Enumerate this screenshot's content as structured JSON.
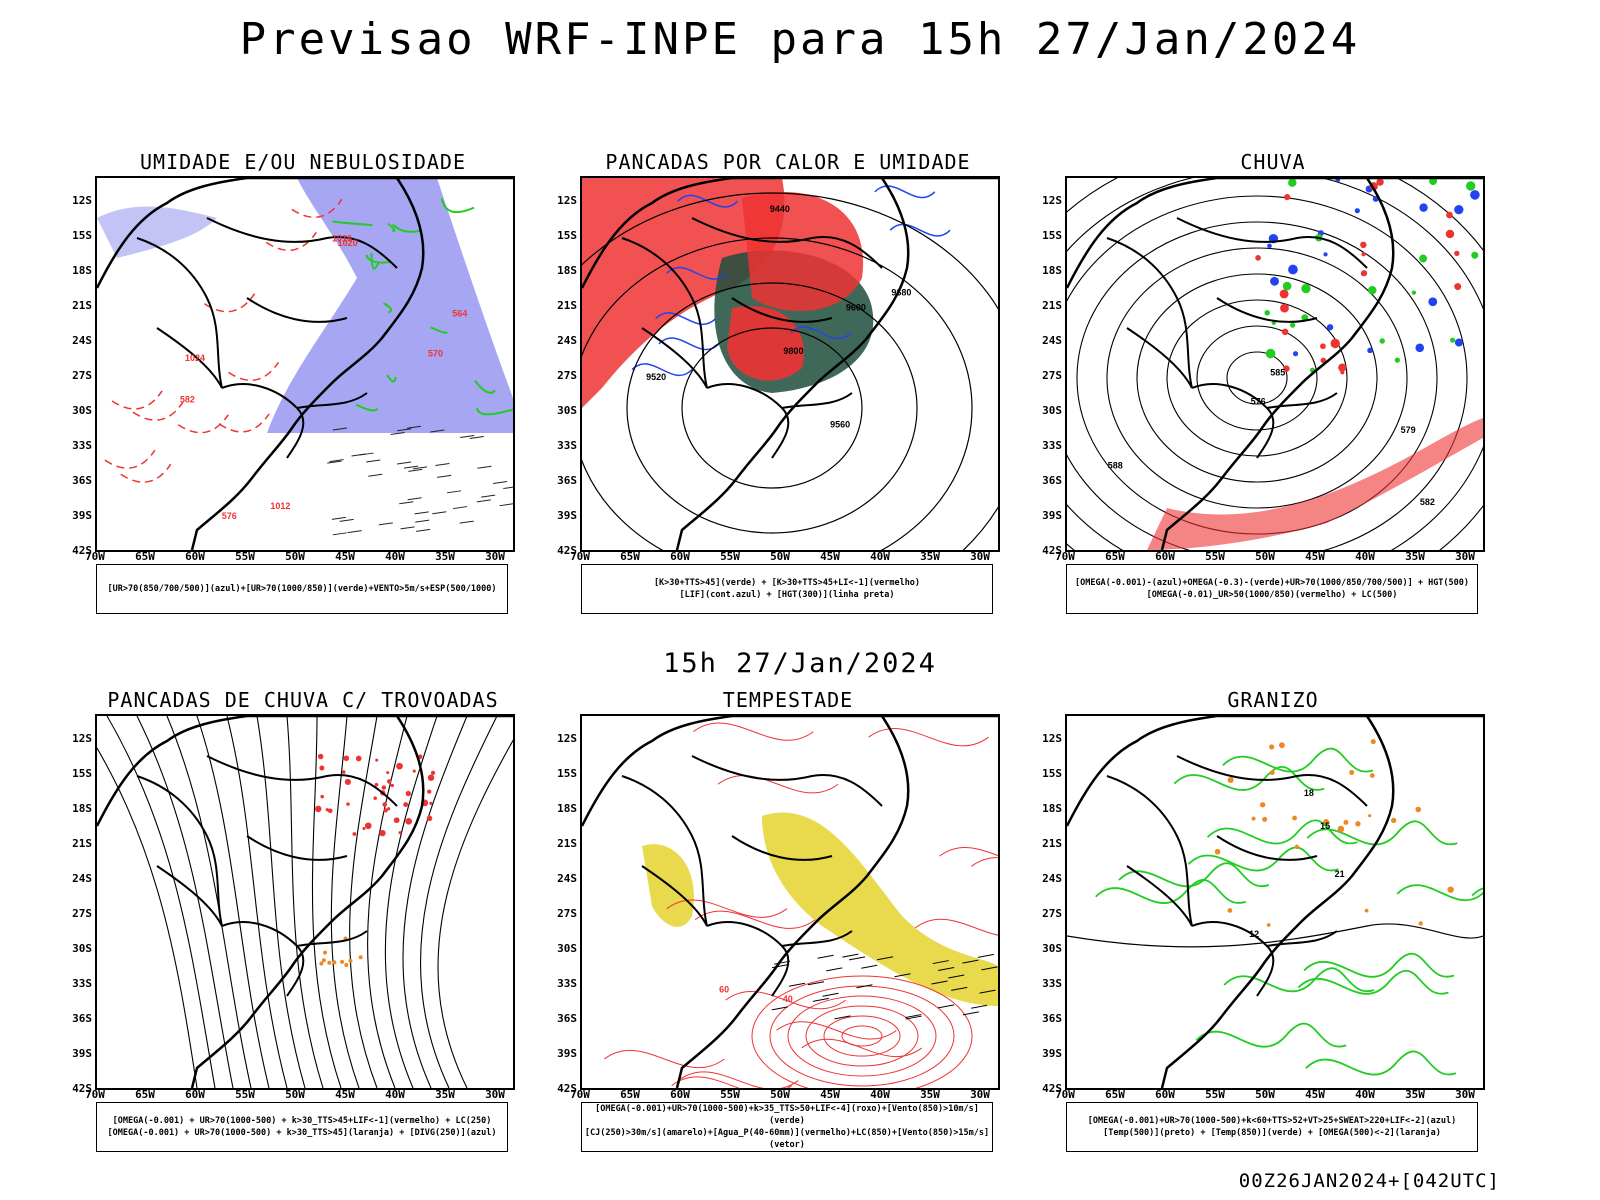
{
  "title": "Previsao WRF-INPE  para 15h 27/Jan/2024",
  "middle_title": "15h 27/Jan/2024",
  "footer": "00Z26JAN2024+[042UTC]",
  "lat_labels": [
    "12S",
    "15S",
    "18S",
    "21S",
    "24S",
    "27S",
    "30S",
    "33S",
    "36S",
    "39S",
    "42S"
  ],
  "lon_labels": [
    "70W",
    "65W",
    "60W",
    "55W",
    "50W",
    "45W",
    "40W",
    "35W",
    "30W"
  ],
  "panels": [
    {
      "title": "UMIDADE E/OU NEBULOSIDADE",
      "legend": [
        "[UR>70(850/700/500)](azul)+[UR>70(1000/850)](verde)+VENTO>5m/s+ESP(500/1000)"
      ],
      "contour_labels": [
        "1012",
        "1016",
        "1020",
        "1024",
        "576",
        "570",
        "564",
        "582"
      ]
    },
    {
      "title": "PANCADAS POR CALOR E UMIDADE",
      "legend": [
        "[K>30+TTS>45](verde) + [K>30+TTS>45+LI<-1](vermelho)",
        "[LIF](cont.azul) + [HGT(300)](linha preta)"
      ],
      "contour_labels": [
        "9680",
        "9600",
        "9520",
        "9440",
        "9560",
        "9800"
      ]
    },
    {
      "title": "CHUVA",
      "legend": [
        "[OMEGA(-0.001)-(azul)+OMEGA(-0.3)-(verde)+UR>70(1000/850/700/500)] + HGT(500)",
        "[OMEGA(-0.01)_UR>50(1000/850)(vermelho) + LC(500)"
      ],
      "contour_labels": [
        "582",
        "579",
        "576",
        "585",
        "588"
      ]
    },
    {
      "title": "PANCADAS DE CHUVA C/ TROVOADAS",
      "legend": [
        "[OMEGA(-0.001) + UR>70(1000-500) + k>30_TTS>45+LIF<-1](vermelho) + LC(250)",
        "[OMEGA(-0.001) + UR>70(1000-500) + k>30_TTS>45](laranja) + [DIVG(250)](azul)"
      ],
      "contour_labels": []
    },
    {
      "title": "TEMPESTADE",
      "legend": [
        "[OMEGA(-0.001)+UR>70(1000-500)+k>35_TTS>50+LIF<-4](roxo)+[Vento(850)>10m/s](verde)",
        "[CJ(250)>30m/s](amarelo)+[Agua_P(40-60mm)](vermelho)+LC(850)+[Vento(850)>15m/s](vetor)"
      ],
      "contour_labels": [
        "40",
        "60"
      ]
    },
    {
      "title": "GRANIZO",
      "legend": [
        "[OMEGA(-0.001)+UR>70(1000-500)+k<60+TTS>52+VT>25+SWEAT>220+LIF<-2](azul)",
        "[Temp(500)](preto) + [Temp(850)](verde) + [OMEGA(500)<-2](laranja)"
      ],
      "contour_labels": [
        "12",
        "15",
        "18",
        "21"
      ]
    }
  ],
  "colors": {
    "blue_fill": "#8888ee",
    "green": "#22cc22",
    "red": "#ee3333",
    "dark_green": "#1e4d3c",
    "yellow": "#e6d53a",
    "orange": "#ee8822"
  }
}
